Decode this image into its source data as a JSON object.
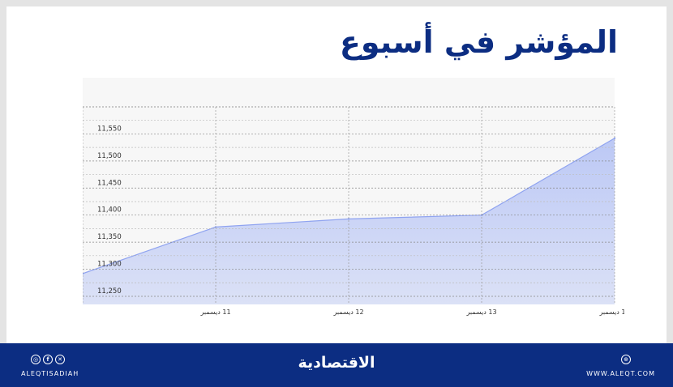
{
  "title": "المؤشر في أسبوع",
  "colors": {
    "brand": "#0c2d82",
    "area_fill": "#b9c6f5",
    "area_line": "#8fa3f0",
    "grid": "#9a9a9a"
  },
  "footer": {
    "handle": "ALEQTISADIAH",
    "brand_name": "الاقتصادية",
    "site": "WWW.ALEQT.COM",
    "social_icons": [
      "instagram-icon",
      "facebook-icon",
      "x-icon"
    ],
    "site_icon": "globe-icon"
  },
  "chart_data": {
    "type": "area",
    "title": "المؤشر في أسبوع",
    "xlabel": "",
    "ylabel": "",
    "x_tick_labels": [
      "11 ديسمبر",
      "12 ديسمبر",
      "13 ديسمبر",
      "14 ديسمبر"
    ],
    "y_tick_labels": [
      "11,250",
      "11,300",
      "11,350",
      "11,400",
      "11,450",
      "11,500",
      "11,550"
    ],
    "y_ticks": [
      11250,
      11300,
      11350,
      11400,
      11450,
      11500,
      11550
    ],
    "ylim": [
      11235,
      11600
    ],
    "x": [
      10,
      11,
      12,
      13,
      14
    ],
    "values": [
      11292,
      11378,
      11393,
      11400,
      11542
    ],
    "grid": true,
    "legend": "none"
  }
}
